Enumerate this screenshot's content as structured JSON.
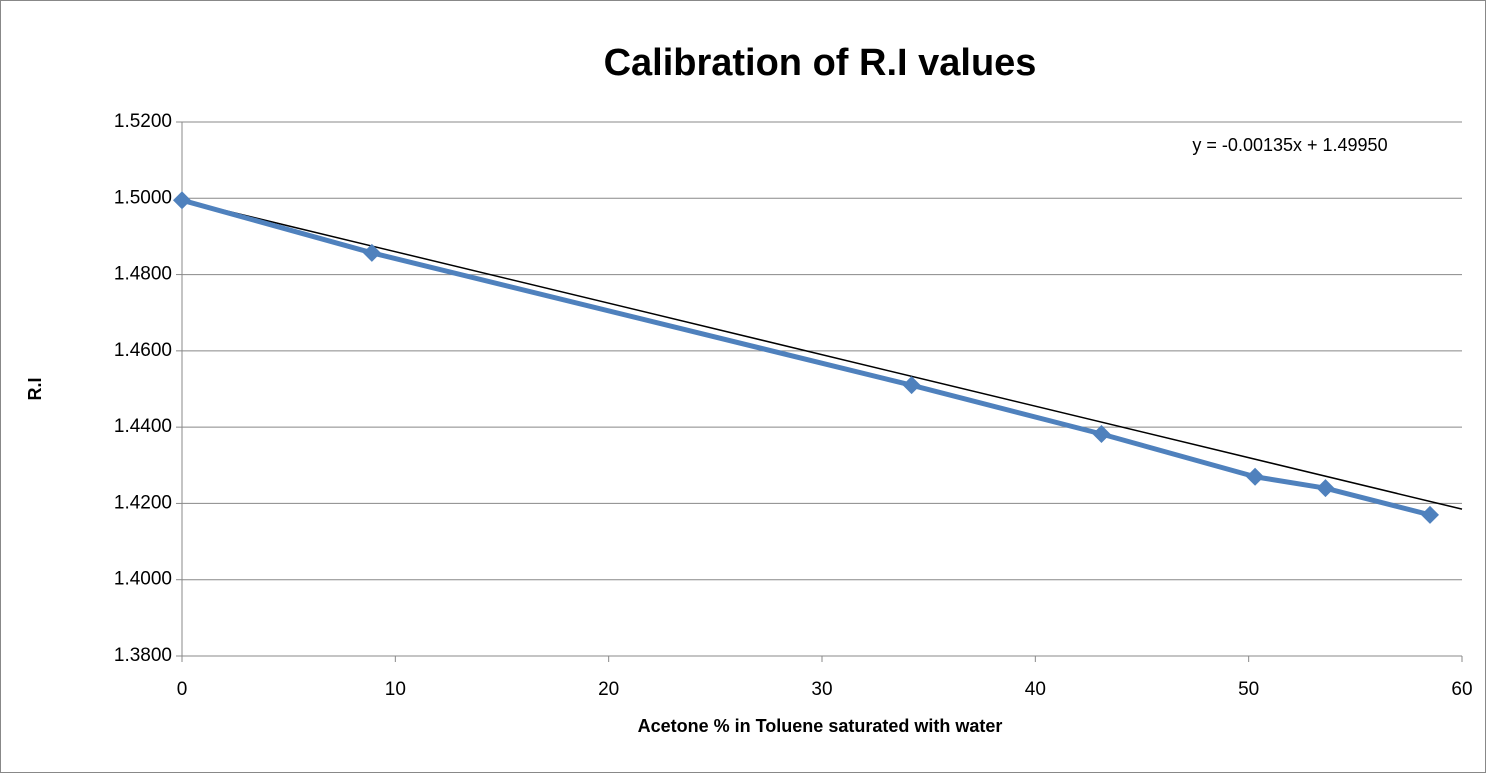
{
  "chart_data": {
    "type": "line",
    "title": "Calibration of R.I values",
    "x_label": "Acetone % in Toluene saturated with water",
    "y_label": "R.I",
    "annotation": "y = -0.00135x + 1.49950",
    "series": [
      {
        "name": "R.I",
        "color": "#4f81bd",
        "x": [
          0,
          8.9,
          34.2,
          43.1,
          50.3,
          53.6,
          58.5
        ],
        "values": [
          1.4995,
          1.4857,
          1.451,
          1.4382,
          1.427,
          1.424,
          1.417
        ]
      }
    ],
    "trendline": {
      "color": "#000000",
      "x": [
        0,
        60
      ],
      "values": [
        1.4995,
        1.4185
      ]
    },
    "xlim": [
      0,
      60
    ],
    "xticks": [
      0,
      10,
      20,
      30,
      40,
      50,
      60
    ],
    "ylim": [
      1.38,
      1.52
    ],
    "yticks": [
      {
        "value": 1.38,
        "label": "1.3800"
      },
      {
        "value": 1.4,
        "label": "1.4000"
      },
      {
        "value": 1.42,
        "label": "1.4200"
      },
      {
        "value": 1.44,
        "label": "1.4400"
      },
      {
        "value": 1.46,
        "label": "1.4600"
      },
      {
        "value": 1.48,
        "label": "1.4800"
      },
      {
        "value": 1.5,
        "label": "1.5000"
      },
      {
        "value": 1.52,
        "label": "1.5200"
      }
    ],
    "grid": true
  }
}
